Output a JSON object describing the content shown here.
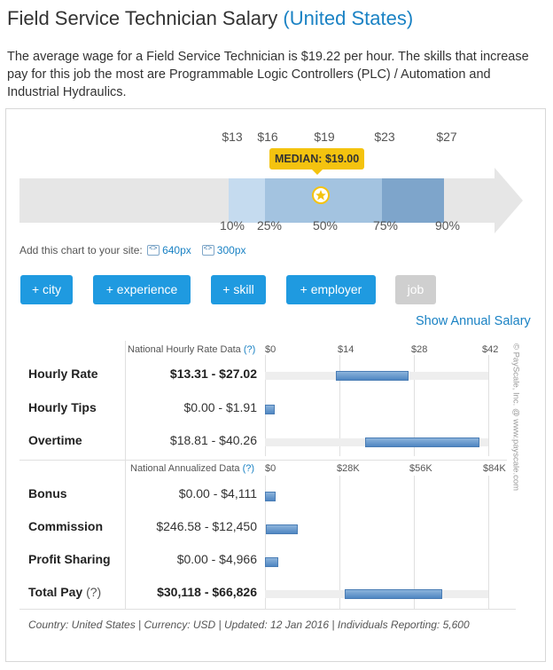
{
  "header": {
    "title_job": "Field Service Technician Salary",
    "title_location": "(United States)"
  },
  "description": "The average wage for a Field Service Technician is $19.22 per hour. The skills that increase pay for this job the most are Programmable Logic Controllers (PLC) / Automation and Industrial Hydraulics.",
  "percentile_chart": {
    "money_labels": [
      "$13",
      "$16",
      "$19",
      "$23",
      "$27"
    ],
    "percentile_labels": [
      "10%",
      "25%",
      "50%",
      "75%",
      "90%"
    ],
    "median_label": "MEDIAN: $19.00",
    "median_value": 19.0,
    "colors": {
      "p10_25": "#c5dbef",
      "p25_75": "#a3c3e0",
      "p75_90": "#7ea5cb",
      "median": "#f4c30f"
    }
  },
  "add_chart": {
    "text": "Add this chart to your site:",
    "link_640": "640px",
    "link_300": "300px"
  },
  "filters": [
    "+ city",
    "+ experience",
    "+ skill",
    "+ employer",
    "job"
  ],
  "annual_link": "Show Annual Salary",
  "hourly_section": {
    "heading": "National Hourly Rate Data",
    "help": "(?)",
    "axis": [
      "$0",
      "$14",
      "$28",
      "$42"
    ],
    "axis_max": 42,
    "rows": [
      {
        "name": "Hourly Rate",
        "range": "$13.31 - $27.02",
        "low": 13.31,
        "high": 27.02,
        "bold": true
      },
      {
        "name": "Hourly Tips",
        "range": "$0.00 - $1.91",
        "low": 0.0,
        "high": 1.91
      },
      {
        "name": "Overtime",
        "range": "$18.81 - $40.26",
        "low": 18.81,
        "high": 40.26
      }
    ]
  },
  "annual_section": {
    "heading": "National Annualized Data",
    "help": "(?)",
    "axis": [
      "$0",
      "$28K",
      "$56K",
      "$84K"
    ],
    "axis_max": 84000,
    "rows": [
      {
        "name": "Bonus",
        "range": "$0.00 - $4,111",
        "low": 0,
        "high": 4111
      },
      {
        "name": "Commission",
        "range": "$246.58 - $12,450",
        "low": 246.58,
        "high": 12450
      },
      {
        "name": "Profit Sharing",
        "range": "$0.00 - $4,966",
        "low": 0,
        "high": 4966
      },
      {
        "name": "Total Pay",
        "help": "(?)",
        "range": "$30,118 - $66,826",
        "low": 30118,
        "high": 66826,
        "bold": true
      }
    ]
  },
  "copyright": "© PayScale, Inc. @ www.payscale.com",
  "footer": "Country: United States  |  Currency: USD  |  Updated: 12 Jan 2016  |  Individuals Reporting: 5,600"
}
